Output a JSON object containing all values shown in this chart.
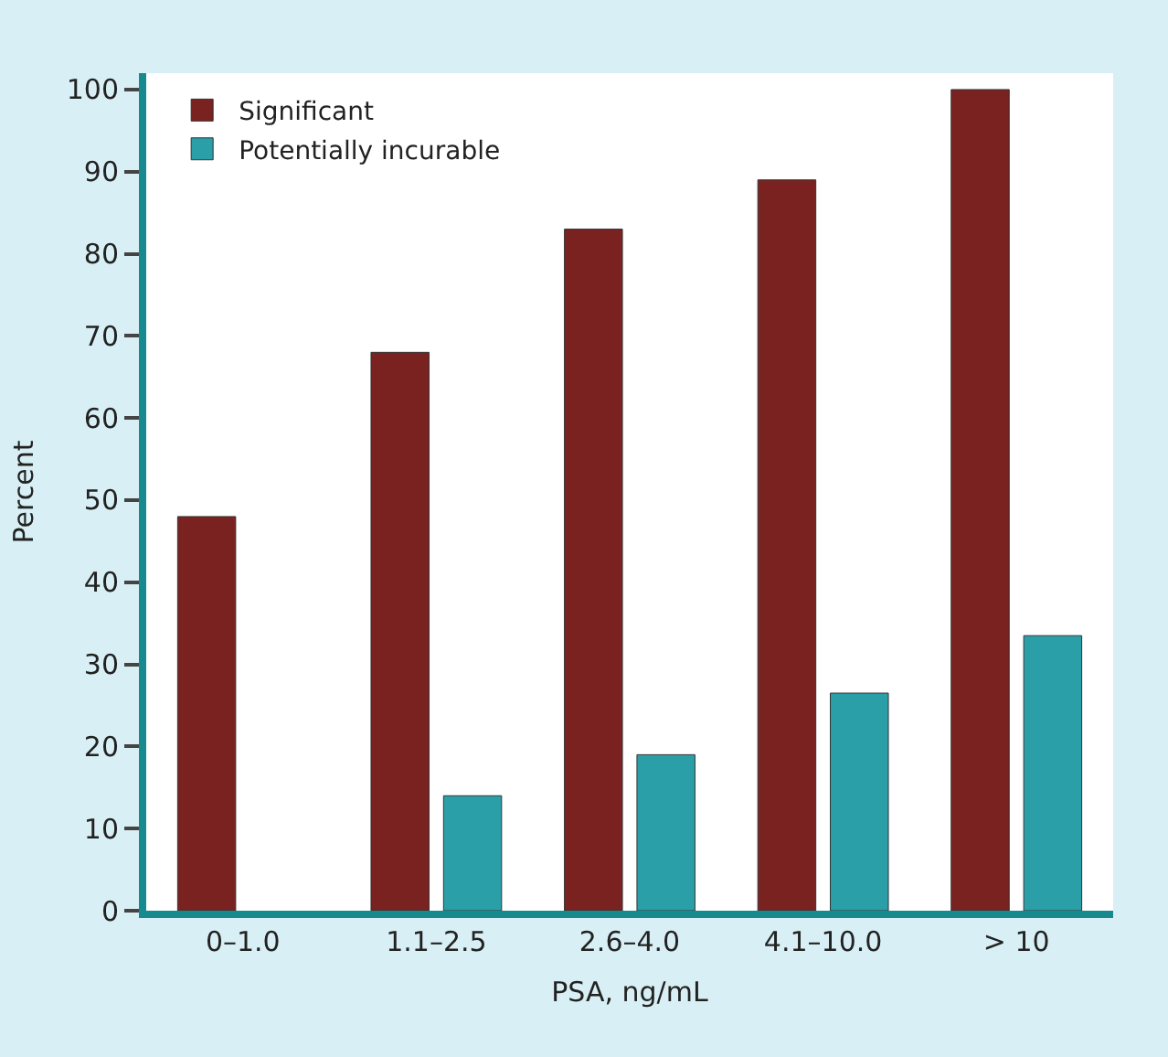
{
  "chart_data": {
    "type": "bar",
    "xlabel": "PSA, ng/mL",
    "ylabel": "Percent",
    "categories": [
      "0–1.0",
      "1.1–2.5",
      "2.6–4.0",
      "4.1–10.0",
      "> 10"
    ],
    "series": [
      {
        "name": "Significant",
        "color": "#7a2220",
        "values": [
          48,
          68,
          83,
          89,
          100
        ]
      },
      {
        "name": "Potentially incurable",
        "color": "#2a9fa8",
        "values": [
          null,
          14,
          19,
          26.5,
          33.5
        ]
      }
    ],
    "ylim": [
      0,
      102
    ],
    "yticks": [
      0,
      10,
      20,
      30,
      40,
      50,
      60,
      70,
      80,
      90,
      100
    ],
    "grid": false,
    "legend": "top left"
  }
}
